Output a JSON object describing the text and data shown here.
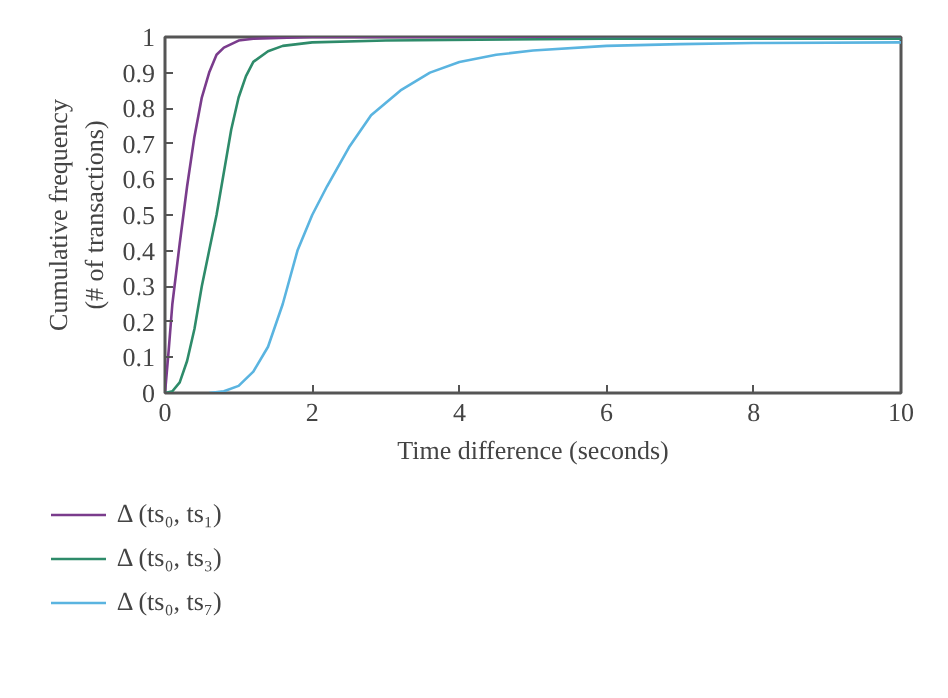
{
  "chart_data": {
    "type": "line",
    "xlabel": "Time difference (seconds)",
    "ylabel": "Cumulative frequency\n(# of transactions)",
    "xlim": [
      0,
      10
    ],
    "xticks": [
      0,
      2,
      4,
      6,
      8,
      10
    ],
    "ylim": [
      0,
      1
    ],
    "yticks": [
      0,
      0.1,
      0.2,
      0.3,
      0.4,
      0.5,
      0.6,
      0.7,
      0.8,
      0.9,
      1
    ],
    "grid": false,
    "legend": "bottom",
    "line_style": "solid",
    "series": [
      {
        "name": "Δ (ts₀, ts₁)",
        "color": "#7a3c8c",
        "x": [
          0,
          0.05,
          0.1,
          0.2,
          0.3,
          0.4,
          0.5,
          0.6,
          0.7,
          0.8,
          1,
          1.2,
          2,
          10
        ],
        "values": [
          0,
          0.12,
          0.25,
          0.42,
          0.58,
          0.72,
          0.83,
          0.9,
          0.95,
          0.97,
          0.99,
          0.995,
          1,
          1
        ]
      },
      {
        "name": "Δ (ts₀, ts₃)",
        "color": "#2e8b6a",
        "x": [
          0,
          0.1,
          0.2,
          0.3,
          0.4,
          0.5,
          0.6,
          0.7,
          0.8,
          0.9,
          1,
          1.1,
          1.2,
          1.4,
          1.6,
          2,
          3,
          6,
          10
        ],
        "values": [
          0,
          0.005,
          0.03,
          0.09,
          0.18,
          0.3,
          0.4,
          0.5,
          0.62,
          0.74,
          0.83,
          0.89,
          0.93,
          0.96,
          0.975,
          0.985,
          0.99,
          0.995,
          0.995
        ]
      },
      {
        "name": "Δ (ts₀, ts₇)",
        "color": "#5ab4e0",
        "x": [
          0.6,
          0.8,
          1,
          1.2,
          1.4,
          1.6,
          1.8,
          2,
          2.2,
          2.5,
          2.8,
          3.2,
          3.6,
          4,
          4.5,
          5,
          6,
          7,
          8,
          10
        ],
        "values": [
          0,
          0.005,
          0.02,
          0.06,
          0.13,
          0.25,
          0.4,
          0.5,
          0.58,
          0.69,
          0.78,
          0.85,
          0.9,
          0.93,
          0.95,
          0.962,
          0.975,
          0.98,
          0.983,
          0.985
        ]
      }
    ]
  }
}
